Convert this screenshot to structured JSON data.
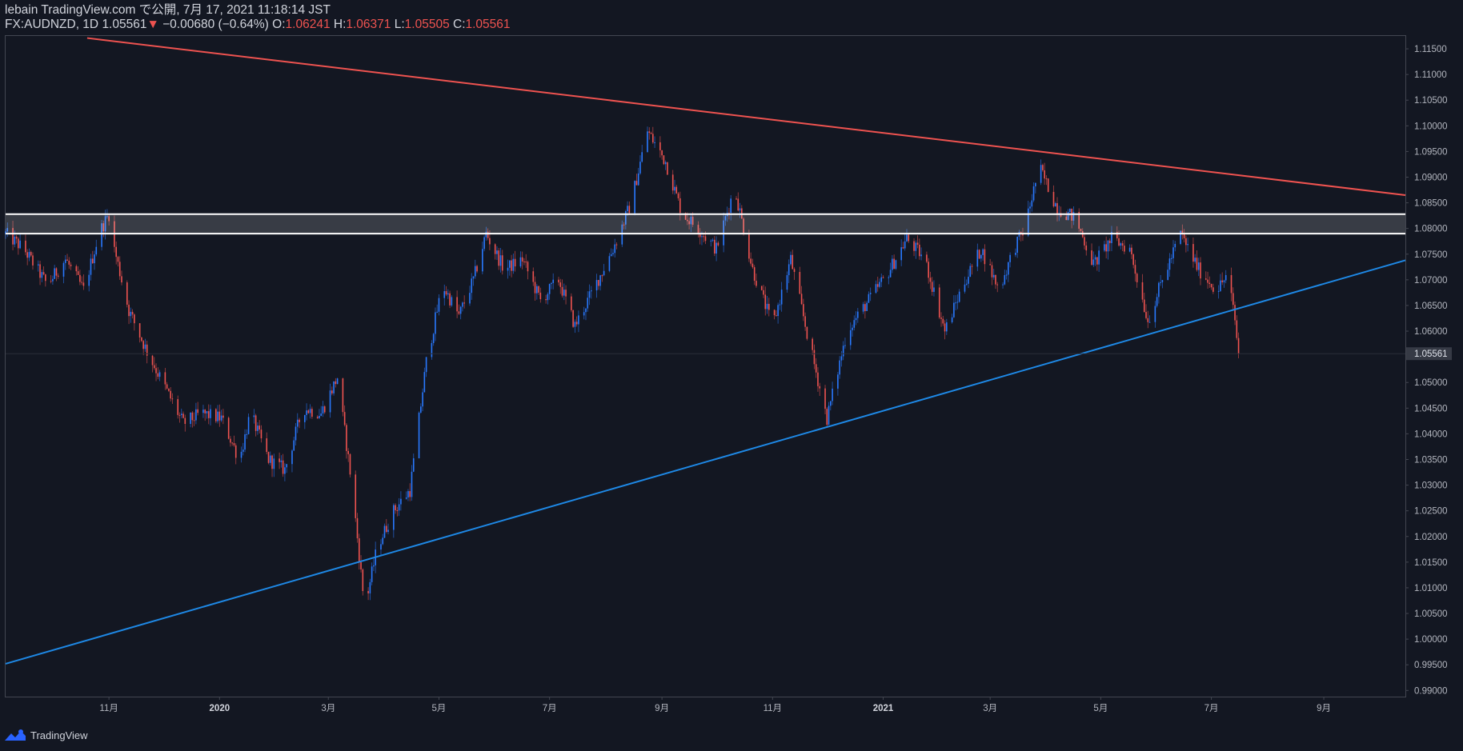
{
  "header": {
    "line1": "lebain TradingView.com で公開, 7月 17, 2021 11:18:14 JST",
    "symbol": "FX:AUDNZD, 1D",
    "last": "1.05561",
    "change_arrow": "▼",
    "change": "−0.00680 (−0.64%)",
    "o_label": "O:",
    "o_value": "1.06241",
    "h_label": "H:",
    "h_value": "1.06371",
    "l_label": "L:",
    "l_value": "1.05505",
    "c_label": "C:",
    "c_value": "1.05561"
  },
  "footer": {
    "brand": "TradingView",
    "logo_icon": "tradingview-logo-icon"
  },
  "colors": {
    "background": "#131722",
    "bull": "#2979ff",
    "bear": "#ef5350",
    "resistance_line": "#ef5350",
    "support_line": "#1e88e5",
    "zone_lines": "#ffffff",
    "axis_text": "#b2b5be"
  },
  "chart_data": {
    "type": "candlestick",
    "title": "FX:AUDNZD, 1D",
    "x_ticks": [
      {
        "label": "11月",
        "date": "2019-11-01",
        "bold": false
      },
      {
        "label": "2020",
        "date": "2020-01-01",
        "bold": true
      },
      {
        "label": "3月",
        "date": "2020-03-01",
        "bold": false
      },
      {
        "label": "5月",
        "date": "2020-05-01",
        "bold": false
      },
      {
        "label": "7月",
        "date": "2020-07-01",
        "bold": false
      },
      {
        "label": "9月",
        "date": "2020-09-01",
        "bold": false
      },
      {
        "label": "11月",
        "date": "2020-11-01",
        "bold": false
      },
      {
        "label": "2021",
        "date": "2021-01-01",
        "bold": true
      },
      {
        "label": "3月",
        "date": "2021-03-01",
        "bold": false
      },
      {
        "label": "5月",
        "date": "2021-05-01",
        "bold": false
      },
      {
        "label": "7月",
        "date": "2021-07-01",
        "bold": false
      },
      {
        "label": "9月",
        "date": "2021-09-01",
        "bold": false
      }
    ],
    "x_range": [
      "2019-09-05",
      "2021-10-16"
    ],
    "y_ticks": [
      "1.11500",
      "1.11000",
      "1.10500",
      "1.10000",
      "1.09500",
      "1.09000",
      "1.08500",
      "1.08000",
      "1.07500",
      "1.07000",
      "1.06500",
      "1.06000",
      "1.05500",
      "1.05000",
      "1.04500",
      "1.04000",
      "1.03500",
      "1.03000",
      "1.02500",
      "1.02000",
      "1.01500",
      "1.01000",
      "1.00500",
      "1.00000",
      "0.99500",
      "0.99000"
    ],
    "y_range": [
      0.9888,
      1.1175
    ],
    "last_price_label": "1.05561",
    "last_price": 1.05561,
    "resistance_line": {
      "start": {
        "date": "2019-10-20",
        "price": 1.1171
      },
      "end": {
        "date": "2021-10-16",
        "price": 1.0865
      }
    },
    "support_line": {
      "start": {
        "date": "2019-09-05",
        "price": 0.9952
      },
      "end": {
        "date": "2021-10-16",
        "price": 1.0738
      }
    },
    "zone": {
      "upper": 1.0828,
      "lower": 1.079
    },
    "price_path": [
      [
        "2019-09-05",
        1.079
      ],
      [
        "2019-09-15",
        1.076
      ],
      [
        "2019-09-28",
        1.069
      ],
      [
        "2019-10-08",
        1.074
      ],
      [
        "2019-10-18",
        1.068
      ],
      [
        "2019-10-27",
        1.0795
      ],
      [
        "2019-11-01",
        1.0828
      ],
      [
        "2019-11-04",
        1.076
      ],
      [
        "2019-11-12",
        1.064
      ],
      [
        "2019-11-22",
        1.056
      ],
      [
        "2019-12-02",
        1.049
      ],
      [
        "2019-12-12",
        1.042
      ],
      [
        "2019-12-22",
        1.044
      ],
      [
        "2020-01-02",
        1.043
      ],
      [
        "2020-01-12",
        1.035
      ],
      [
        "2020-01-18",
        1.044
      ],
      [
        "2020-01-28",
        1.035
      ],
      [
        "2020-02-06",
        1.033
      ],
      [
        "2020-02-16",
        1.045
      ],
      [
        "2020-02-26",
        1.044
      ],
      [
        "2020-03-06",
        1.051
      ],
      [
        "2020-03-14",
        1.03
      ],
      [
        "2020-03-21",
        1.006
      ],
      [
        "2020-03-28",
        1.018
      ],
      [
        "2020-04-06",
        1.025
      ],
      [
        "2020-04-15",
        1.029
      ],
      [
        "2020-04-24",
        1.054
      ],
      [
        "2020-05-03",
        1.069
      ],
      [
        "2020-05-12",
        1.063
      ],
      [
        "2020-05-20",
        1.07
      ],
      [
        "2020-05-27",
        1.079
      ],
      [
        "2020-06-06",
        1.072
      ],
      [
        "2020-06-16",
        1.074
      ],
      [
        "2020-06-26",
        1.066
      ],
      [
        "2020-07-06",
        1.07
      ],
      [
        "2020-07-15",
        1.061
      ],
      [
        "2020-07-25",
        1.068
      ],
      [
        "2020-08-05",
        1.076
      ],
      [
        "2020-08-15",
        1.085
      ],
      [
        "2020-08-24",
        1.099
      ],
      [
        "2020-09-03",
        1.093
      ],
      [
        "2020-09-12",
        1.083
      ],
      [
        "2020-09-21",
        1.08
      ],
      [
        "2020-10-01",
        1.076
      ],
      [
        "2020-10-11",
        1.088
      ],
      [
        "2020-10-21",
        1.072
      ],
      [
        "2020-11-01",
        1.061
      ],
      [
        "2020-11-11",
        1.074
      ],
      [
        "2020-11-21",
        1.058
      ],
      [
        "2020-12-01",
        1.043
      ],
      [
        "2020-12-12",
        1.06
      ],
      [
        "2020-12-22",
        1.065
      ],
      [
        "2021-01-03",
        1.071
      ],
      [
        "2021-01-14",
        1.078
      ],
      [
        "2021-01-24",
        1.074
      ],
      [
        "2021-02-04",
        1.06
      ],
      [
        "2021-02-14",
        1.069
      ],
      [
        "2021-02-24",
        1.076
      ],
      [
        "2021-03-06",
        1.068
      ],
      [
        "2021-03-14",
        1.076
      ],
      [
        "2021-03-20",
        1.08
      ],
      [
        "2021-03-28",
        1.092
      ],
      [
        "2021-04-07",
        1.084
      ],
      [
        "2021-04-17",
        1.082
      ],
      [
        "2021-04-27",
        1.073
      ],
      [
        "2021-05-07",
        1.078
      ],
      [
        "2021-05-17",
        1.076
      ],
      [
        "2021-05-27",
        1.062
      ],
      [
        "2021-06-04",
        1.07
      ],
      [
        "2021-06-14",
        1.079
      ],
      [
        "2021-06-24",
        1.072
      ],
      [
        "2021-07-04",
        1.068
      ],
      [
        "2021-07-10",
        1.071
      ],
      [
        "2021-07-14",
        1.062
      ],
      [
        "2021-07-16",
        1.05561
      ]
    ]
  }
}
